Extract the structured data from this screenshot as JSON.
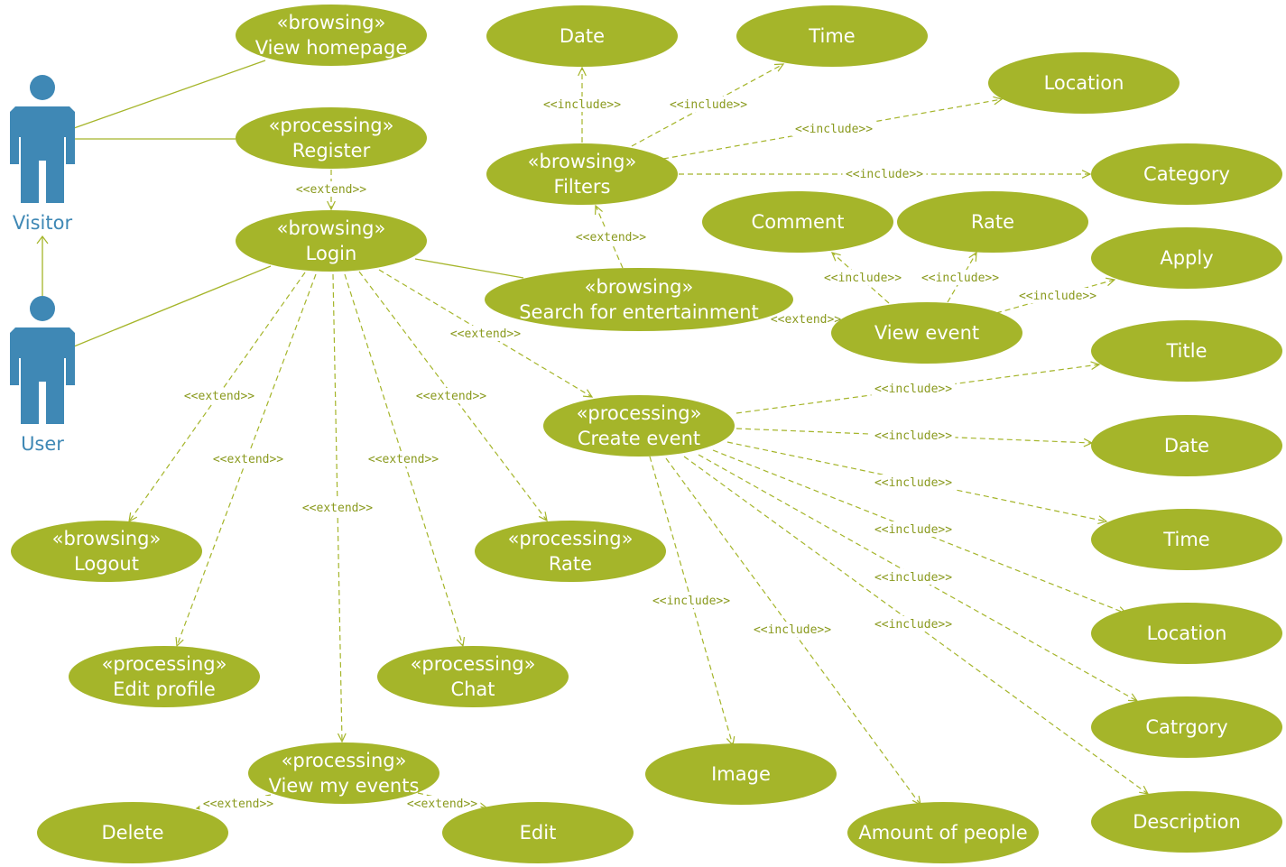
{
  "actors": [
    {
      "id": "visitor",
      "label": "Visitor"
    },
    {
      "id": "user",
      "label": "User"
    }
  ],
  "use_cases": [
    {
      "id": "view_homepage",
      "stereotype": "«browsing»",
      "label": "View homepage"
    },
    {
      "id": "register",
      "stereotype": "«processing»",
      "label": "Register"
    },
    {
      "id": "login",
      "stereotype": "«browsing»",
      "label": "Login"
    },
    {
      "id": "logout",
      "stereotype": "«browsing»",
      "label": "Logout"
    },
    {
      "id": "edit_profile",
      "stereotype": "«processing»",
      "label": "Edit profile"
    },
    {
      "id": "view_my_events",
      "stereotype": "«processing»",
      "label": "View my events"
    },
    {
      "id": "delete",
      "stereotype": "",
      "label": "Delete"
    },
    {
      "id": "edit",
      "stereotype": "",
      "label": "Edit"
    },
    {
      "id": "chat",
      "stereotype": "«processing»",
      "label": "Chat"
    },
    {
      "id": "rate_processing",
      "stereotype": "«processing»",
      "label": "Rate"
    },
    {
      "id": "filters",
      "stereotype": "«browsing»",
      "label": "Filters"
    },
    {
      "id": "f_date",
      "stereotype": "",
      "label": "Date"
    },
    {
      "id": "f_time",
      "stereotype": "",
      "label": "Time"
    },
    {
      "id": "f_location",
      "stereotype": "",
      "label": "Location"
    },
    {
      "id": "f_category",
      "stereotype": "",
      "label": "Category"
    },
    {
      "id": "search",
      "stereotype": "«browsing»",
      "label": "Search for entertainment"
    },
    {
      "id": "comment",
      "stereotype": "",
      "label": "Comment"
    },
    {
      "id": "rate_event",
      "stereotype": "",
      "label": "Rate"
    },
    {
      "id": "apply",
      "stereotype": "",
      "label": "Apply"
    },
    {
      "id": "view_event",
      "stereotype": "",
      "label": "View event"
    },
    {
      "id": "create_event",
      "stereotype": "«processing»",
      "label": "Create event"
    },
    {
      "id": "c_title",
      "stereotype": "",
      "label": "Title"
    },
    {
      "id": "c_date",
      "stereotype": "",
      "label": "Date"
    },
    {
      "id": "c_time",
      "stereotype": "",
      "label": "Time"
    },
    {
      "id": "c_location",
      "stereotype": "",
      "label": "Location"
    },
    {
      "id": "c_category",
      "stereotype": "",
      "label": "Catrgory"
    },
    {
      "id": "c_description",
      "stereotype": "",
      "label": "Description"
    },
    {
      "id": "image",
      "stereotype": "",
      "label": "Image"
    },
    {
      "id": "amount",
      "stereotype": "",
      "label": "Amount of people"
    }
  ],
  "associations": [
    {
      "actor": "visitor",
      "use_case": "view_homepage"
    },
    {
      "actor": "visitor",
      "use_case": "register"
    },
    {
      "actor": "user",
      "use_case": "login"
    },
    {
      "actor": "user",
      "use_case": "search"
    }
  ],
  "generalizations": [
    {
      "from": "user",
      "to": "visitor"
    }
  ],
  "relations": [
    {
      "from": "register",
      "to": "login",
      "label": "<<extend>>"
    },
    {
      "from": "login",
      "to": "logout",
      "label": "<<extend>>"
    },
    {
      "from": "login",
      "to": "edit_profile",
      "label": "<<extend>>"
    },
    {
      "from": "login",
      "to": "view_my_events",
      "label": "<<extend>>"
    },
    {
      "from": "login",
      "to": "chat",
      "label": "<<extend>>"
    },
    {
      "from": "login",
      "to": "rate_processing",
      "label": "<<extend>>"
    },
    {
      "from": "login",
      "to": "create_event",
      "label": "<<extend>>"
    },
    {
      "from": "view_my_events",
      "to": "delete",
      "label": "<<extend>>"
    },
    {
      "from": "view_my_events",
      "to": "edit",
      "label": "<<extend>>"
    },
    {
      "from": "search",
      "to": "filters",
      "label": "<<extend>>"
    },
    {
      "from": "search",
      "to": "view_event",
      "label": "<<extend>>"
    },
    {
      "from": "filters",
      "to": "f_date",
      "label": "<<include>>"
    },
    {
      "from": "filters",
      "to": "f_time",
      "label": "<<include>>"
    },
    {
      "from": "filters",
      "to": "f_location",
      "label": "<<include>>"
    },
    {
      "from": "filters",
      "to": "f_category",
      "label": "<<include>>"
    },
    {
      "from": "view_event",
      "to": "comment",
      "label": "<<include>>"
    },
    {
      "from": "view_event",
      "to": "rate_event",
      "label": "<<include>>"
    },
    {
      "from": "view_event",
      "to": "apply",
      "label": "<<include>>"
    },
    {
      "from": "create_event",
      "to": "c_title",
      "label": "<<include>>"
    },
    {
      "from": "create_event",
      "to": "c_date",
      "label": "<<include>>"
    },
    {
      "from": "create_event",
      "to": "c_time",
      "label": "<<include>>"
    },
    {
      "from": "create_event",
      "to": "c_location",
      "label": "<<include>>"
    },
    {
      "from": "create_event",
      "to": "c_category",
      "label": "<<include>>"
    },
    {
      "from": "create_event",
      "to": "c_description",
      "label": "<<include>>"
    },
    {
      "from": "create_event",
      "to": "image",
      "label": "<<include>>"
    },
    {
      "from": "create_event",
      "to": "amount",
      "label": "<<include>>"
    }
  ]
}
